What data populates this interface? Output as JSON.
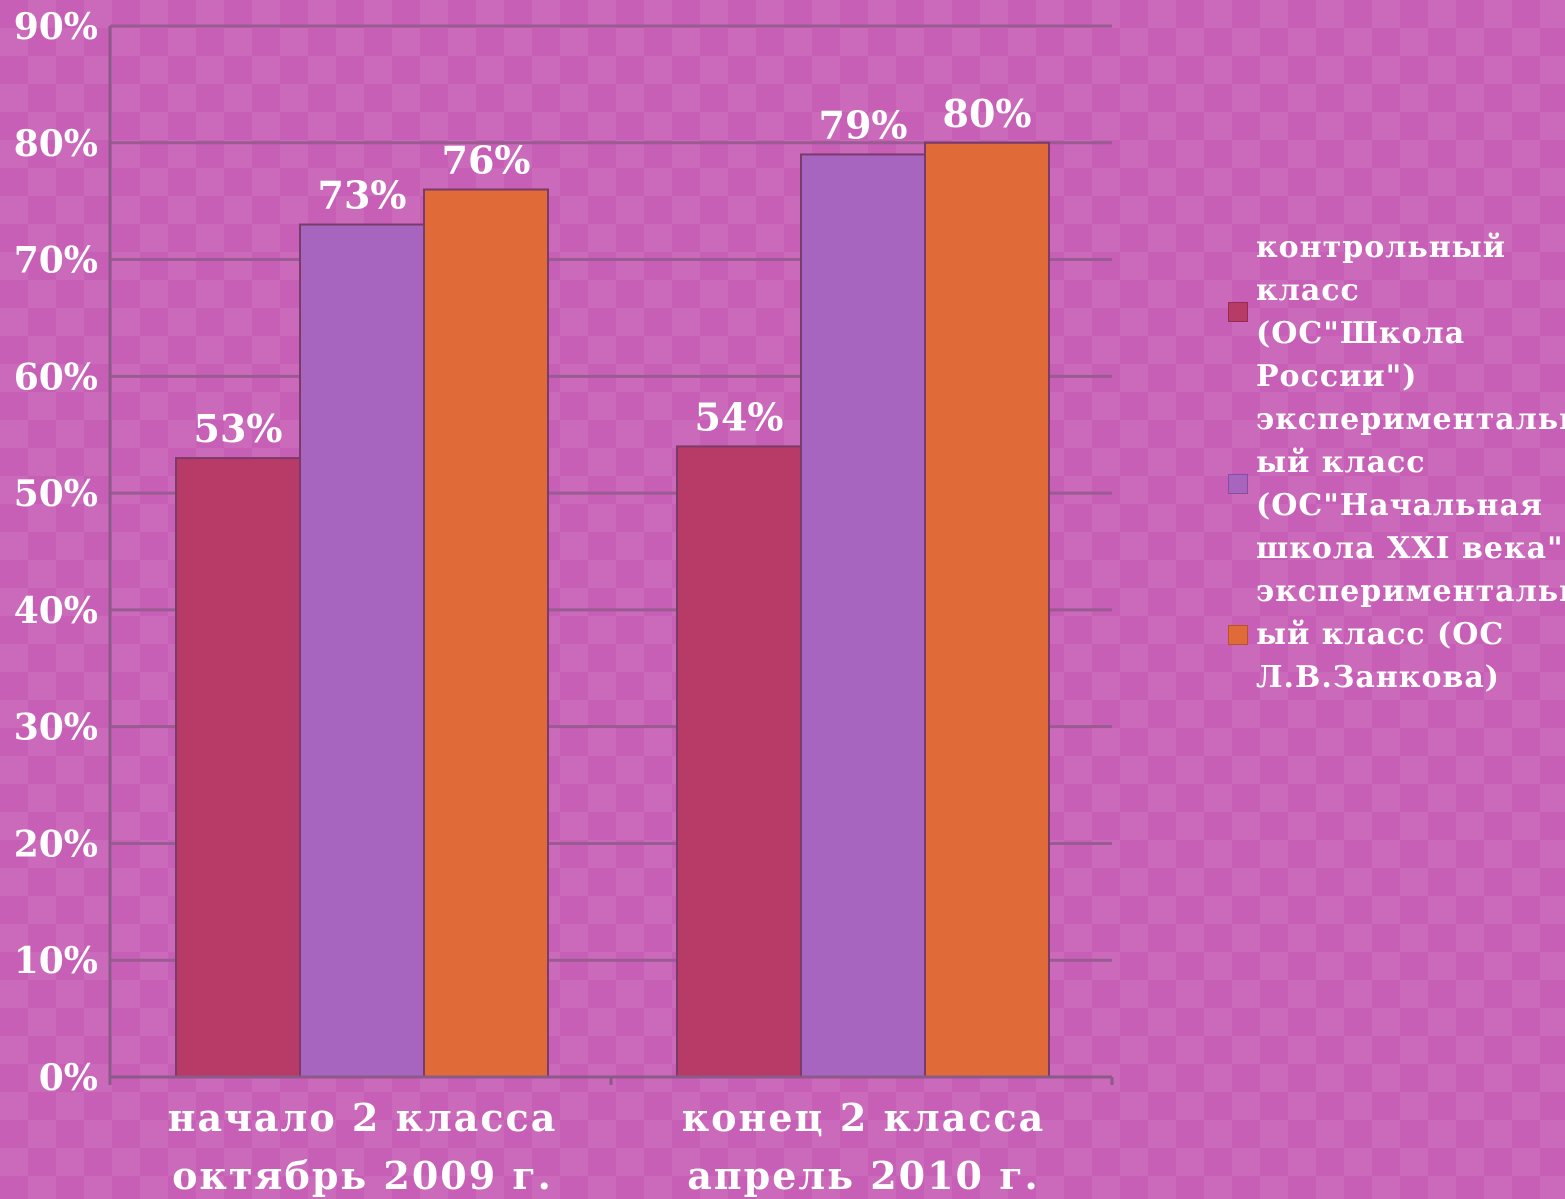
{
  "chart_data": {
    "type": "bar",
    "categories": [
      [
        "начало 2 класса",
        "октябрь 2009 г."
      ],
      [
        "конец   2 класса",
        "апрель   2010 г."
      ]
    ],
    "series": [
      {
        "name": "контрольный класс (ОС\"Школа России\")",
        "legend_text": "контрольный\nкласс\n(ОС\"Школа\nРоссии\")",
        "color": "#b83a66",
        "values": [
          53,
          54
        ],
        "labels": [
          "53%",
          "54%"
        ]
      },
      {
        "name": "экспериментальный класс (ОС\"Начальная школа XXI века\")",
        "legend_text": "экспериментальн\nый класс\n(ОС\"Начальная\nшкола XXI века\")",
        "color": "#a865bf",
        "values": [
          73,
          79
        ],
        "labels": [
          "73%",
          "79%"
        ]
      },
      {
        "name": "экспериментальный класс (ОС Л.В.Занкова)",
        "legend_text": "экспериментальн\nый класс (ОС\nЛ.В.Занкова)",
        "color": "#e06a38",
        "values": [
          76,
          80
        ],
        "labels": [
          "76%",
          "80%"
        ]
      }
    ],
    "ylim": [
      0,
      90
    ],
    "yticks": [
      "0%",
      "10%",
      "20%",
      "30%",
      "40%",
      "50%",
      "60%",
      "70%",
      "80%",
      "90%"
    ],
    "ytick_values": [
      0,
      10,
      20,
      30,
      40,
      50,
      60,
      70,
      80,
      90
    ],
    "grid": true,
    "legend_position": "right"
  }
}
